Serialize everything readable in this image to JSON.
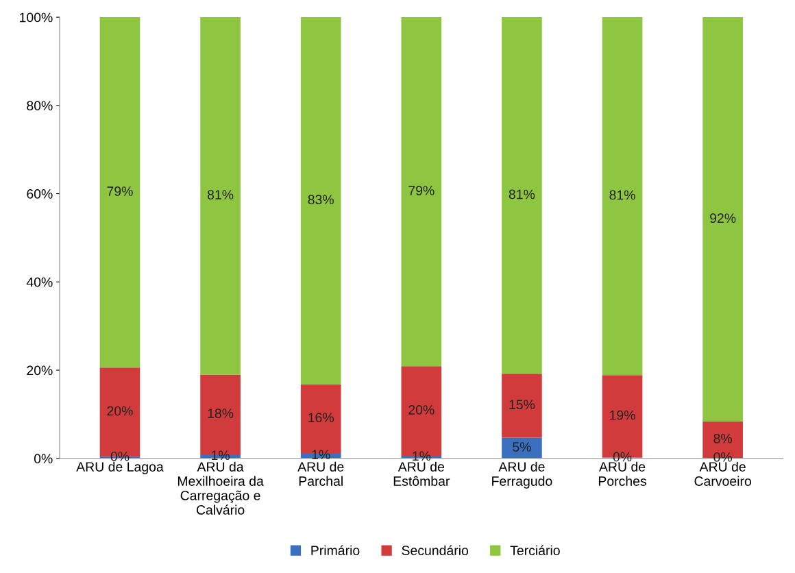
{
  "chart_data": {
    "type": "bar",
    "stacked": true,
    "categories": [
      "ARU de Lagoa",
      "ARU da\nMexilhoeira da\nCarregação e\nCalvário",
      "ARU de\nParchal",
      "ARU de\nEstômbar",
      "ARU de\nFerragudo",
      "ARU de\nPorches",
      "ARU de\nCarvoeiro"
    ],
    "series": [
      {
        "name": "Primário",
        "color": "#3b6fbf",
        "values": [
          0.4,
          0.9,
          1.2,
          0.6,
          4.7,
          0.2,
          0.1
        ],
        "value_labels": [
          "0%",
          "1%",
          "1%",
          "1%",
          "5%",
          "0%",
          "0%"
        ]
      },
      {
        "name": "Secundário",
        "color": "#d13b3b",
        "values": [
          20.2,
          18.1,
          15.6,
          20.3,
          14.5,
          18.7,
          8.3
        ],
        "value_labels": [
          "20%",
          "18%",
          "16%",
          "20%",
          "15%",
          "19%",
          "8%"
        ]
      },
      {
        "name": "Terciário",
        "color": "#8fc641",
        "values": [
          79.4,
          81.0,
          83.2,
          79.1,
          80.8,
          81.1,
          91.6
        ],
        "value_labels": [
          "79%",
          "81%",
          "83%",
          "79%",
          "81%",
          "81%",
          "92%"
        ]
      }
    ],
    "ylim": [
      0,
      100
    ],
    "yticks": [
      {
        "value": 0,
        "label": "0%"
      },
      {
        "value": 20,
        "label": "20%"
      },
      {
        "value": 40,
        "label": "40%"
      },
      {
        "value": 60,
        "label": "60%"
      },
      {
        "value": 80,
        "label": "80%"
      },
      {
        "value": 100,
        "label": "100%"
      }
    ],
    "grid": false,
    "legend": "bottom"
  }
}
